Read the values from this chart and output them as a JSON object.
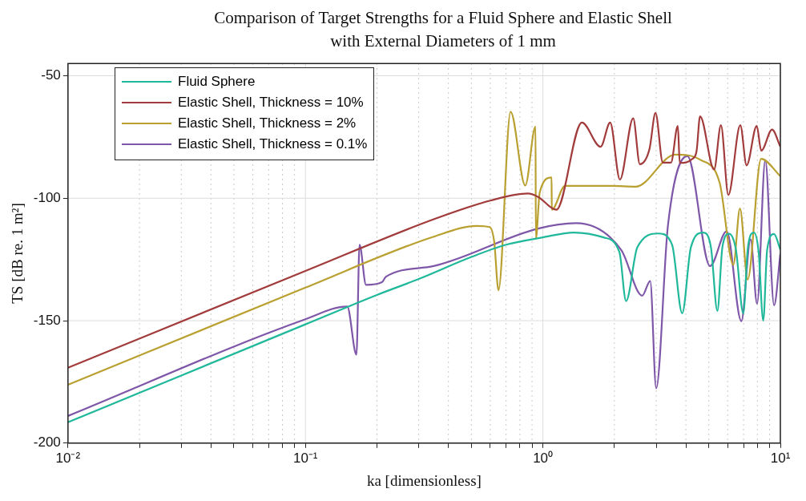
{
  "chart_data": {
    "type": "line",
    "title": "Comparison of Target Strengths for a Fluid Sphere and Elastic Shell with External Diameters of 1 mm",
    "xlabel": "ka [dimensionless]",
    "ylabel": "TS [dB re. 1 m²]",
    "log": "x",
    "grid": true,
    "legend": "top left",
    "line_style": "solid",
    "marker": "none",
    "xlim": [
      0.01,
      10
    ],
    "ylim": [
      -200,
      -45
    ],
    "xticks": [
      {
        "value": 0.01,
        "label": "10⁻²"
      },
      {
        "value": 0.02,
        "label": null
      },
      {
        "value": 0.03,
        "label": null
      },
      {
        "value": 0.04,
        "label": null
      },
      {
        "value": 0.05,
        "label": null
      },
      {
        "value": 0.06,
        "label": null
      },
      {
        "value": 0.07,
        "label": null
      },
      {
        "value": 0.08,
        "label": null
      },
      {
        "value": 0.09,
        "label": null
      },
      {
        "value": 0.1,
        "label": "10⁻¹"
      },
      {
        "value": 0.2,
        "label": null
      },
      {
        "value": 0.3,
        "label": null
      },
      {
        "value": 0.4,
        "label": null
      },
      {
        "value": 0.5,
        "label": null
      },
      {
        "value": 0.6,
        "label": null
      },
      {
        "value": 0.7,
        "label": null
      },
      {
        "value": 0.8,
        "label": null
      },
      {
        "value": 0.9,
        "label": null
      },
      {
        "value": 1,
        "label": "10⁰"
      },
      {
        "value": 2,
        "label": null
      },
      {
        "value": 3,
        "label": null
      },
      {
        "value": 4,
        "label": null
      },
      {
        "value": 5,
        "label": null
      },
      {
        "value": 6,
        "label": null
      },
      {
        "value": 7,
        "label": null
      },
      {
        "value": 8,
        "label": null
      },
      {
        "value": 9,
        "label": null
      },
      {
        "value": 10,
        "label": "10¹"
      }
    ],
    "yticks": [
      -200,
      -150,
      -100,
      -50
    ],
    "series": [
      {
        "name": "Fluid Sphere",
        "color": "#1fb89a",
        "x": [
          0.01,
          0.03,
          0.1,
          0.2,
          0.3,
          0.5,
          0.7,
          1,
          1.35,
          1.8,
          2.1,
          2.24,
          2.5,
          3.07,
          3.5,
          3.86,
          4.2,
          4.73,
          5.1,
          5.43,
          5.7,
          6.08,
          6.5,
          6.98,
          7.3,
          7.74,
          8.1,
          8.47,
          8.8,
          9.4,
          10
        ],
        "values": [
          -191.5,
          -172.4,
          -151.5,
          -139.5,
          -133,
          -124,
          -119,
          -116,
          -114,
          -116,
          -122,
          -142,
          -120,
          -114.4,
          -119,
          -147,
          -120,
          -114,
          -120,
          -146,
          -120,
          -114.5,
          -121,
          -147,
          -120,
          -114,
          -122,
          -150,
          -121,
          -114.6,
          -121
        ]
      },
      {
        "name": "Elastic Shell, Thickness = 10%",
        "color": "#a23b3b",
        "x": [
          0.01,
          0.1,
          0.347,
          0.6,
          0.865,
          0.955,
          1.14,
          1.46,
          1.75,
          1.92,
          2.11,
          2.4,
          2.56,
          2.81,
          2.98,
          3.2,
          3.46,
          3.7,
          3.77,
          4.27,
          4.44,
          4.59,
          5.26,
          5.62,
          6.04,
          6.78,
          7.21,
          7.95,
          8.31,
          9.23,
          10
        ],
        "values": [
          -169.2,
          -129.7,
          -108.6,
          -101,
          -98.1,
          -99.5,
          -104.7,
          -69.1,
          -79,
          -69.1,
          -92.4,
          -67.4,
          -86.1,
          -80,
          -65.2,
          -85.5,
          -85.5,
          -70.5,
          -85.6,
          -83.9,
          -80.6,
          -66.6,
          -88.3,
          -70.2,
          -98.7,
          -70.2,
          -86.6,
          -70.5,
          -80.6,
          -72,
          -79
        ]
      },
      {
        "name": "Elastic Shell, Thickness = 2%",
        "color": "#b9a030",
        "x": [
          0.01,
          0.1,
          0.347,
          0.527,
          0.597,
          0.624,
          0.65,
          0.731,
          0.843,
          0.931,
          0.934,
          0.97,
          1.088,
          1.09,
          1.24,
          1.94,
          2.46,
          3.61,
          4.62,
          5.55,
          6.34,
          6.76,
          7.28,
          8.3,
          10
        ],
        "values": [
          -176.2,
          -136.5,
          -115.7,
          -111.3,
          -111.8,
          -118,
          -137.6,
          -64.7,
          -94.8,
          -70.7,
          -116.5,
          -97.6,
          -91.5,
          -104.7,
          -95,
          -95,
          -95.3,
          -82.2,
          -84.4,
          -93.7,
          -127.2,
          -104.2,
          -133.2,
          -83.9,
          -91
        ]
      },
      {
        "name": "Elastic Shell, Thickness = 0.1%",
        "color": "#7e57a8",
        "x": [
          0.01,
          0.1,
          0.15,
          0.164,
          0.169,
          0.18,
          0.21,
          0.218,
          0.347,
          0.955,
          1.38,
          2.14,
          2.62,
          2.83,
          3,
          3.36,
          4.06,
          5.06,
          5.94,
          6.85,
          7.49,
          7.98,
          8.64,
          9.41,
          10
        ],
        "values": [
          -188.9,
          -149.4,
          -144.2,
          -163.9,
          -119,
          -135.4,
          -134.3,
          -132.1,
          -127.7,
          -112.4,
          -110.2,
          -121.2,
          -139.8,
          -133.8,
          -177.6,
          -111.3,
          -82.8,
          -127.7,
          -113.5,
          -150.2,
          -116.8,
          -143.1,
          -84.4,
          -143.7,
          -122.7
        ]
      }
    ]
  }
}
